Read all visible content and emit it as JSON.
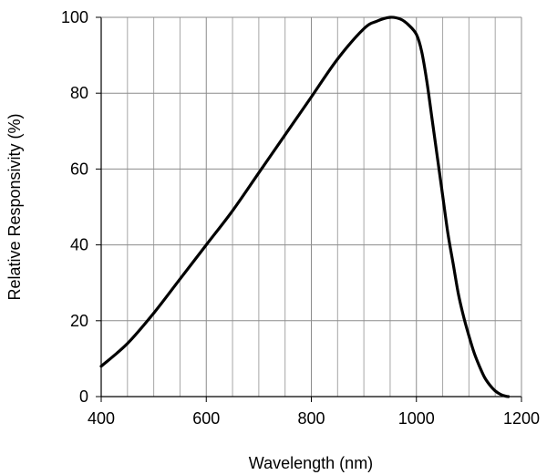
{
  "chart_data": {
    "type": "line",
    "title": "",
    "xlabel": "Wavelength (nm)",
    "ylabel": "Relative Responsivity (%)",
    "xlim": [
      400,
      1200
    ],
    "ylim": [
      0,
      100
    ],
    "xticks": [
      400,
      600,
      800,
      1000,
      1200
    ],
    "yticks": [
      0,
      20,
      40,
      60,
      80,
      100
    ],
    "x_tick_labels": [
      "400",
      "600",
      "800",
      "1000",
      "1200"
    ],
    "y_tick_labels": [
      "0",
      "20",
      "40",
      "60",
      "80",
      "100"
    ],
    "grid": true,
    "legend": "none",
    "colors": {
      "line": "#000000",
      "grid": "#a6a6a6",
      "axis": "#000000"
    },
    "series": [
      {
        "x": [
          400,
          450,
          500,
          550,
          600,
          650,
          700,
          750,
          800,
          850,
          900,
          925,
          950,
          970,
          985,
          1000,
          1010,
          1020,
          1030,
          1040,
          1050,
          1060,
          1070,
          1080,
          1090,
          1100,
          1110,
          1120,
          1130,
          1140,
          1150,
          1160,
          1170,
          1175
        ],
        "y": [
          8,
          14,
          22,
          31,
          40,
          49,
          59,
          69,
          79,
          89,
          97,
          99,
          100,
          99.5,
          98,
          95.5,
          91,
          83,
          73,
          63,
          53,
          43,
          35,
          27,
          21,
          16,
          11.5,
          8,
          5,
          3,
          1.5,
          0.6,
          0.1,
          0
        ]
      }
    ]
  }
}
